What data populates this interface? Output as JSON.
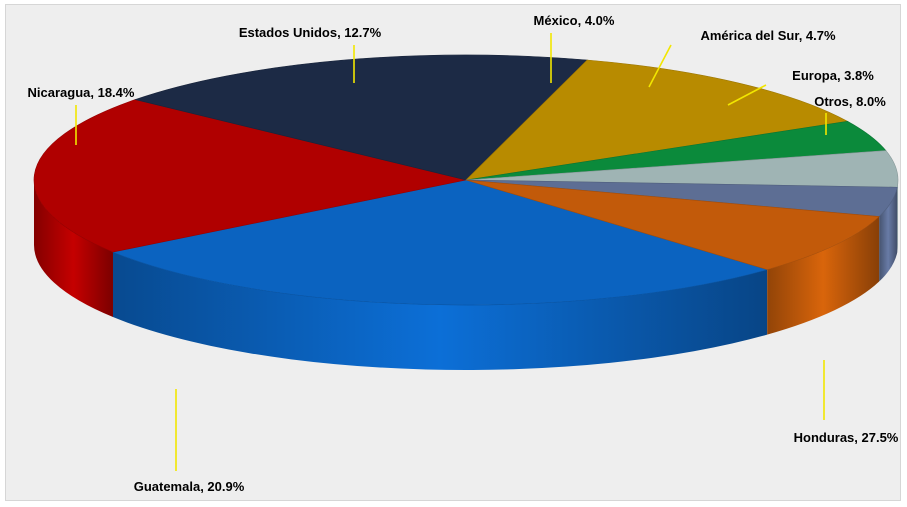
{
  "chart_data": {
    "type": "pie",
    "style": "3d",
    "legend": "none",
    "background": "#eeeeee",
    "slices": [
      {
        "label": "Honduras",
        "value": 27.5,
        "display": "Honduras, 27.5%",
        "color": "#0b63c0"
      },
      {
        "label": "Guatemala",
        "value": 20.9,
        "display": "Guatemala, 20.9%",
        "color": "#b00000"
      },
      {
        "label": "Nicaragua",
        "value": 18.4,
        "display": "Nicaragua, 18.4%",
        "color": "#1c2a45"
      },
      {
        "label": "Estados Unidos",
        "value": 12.7,
        "display": "Estados Unidos, 12.7%",
        "color": "#b88b00"
      },
      {
        "label": "México",
        "value": 4.0,
        "display": "México, 4.0%",
        "color": "#0b8a3b"
      },
      {
        "label": "América del Sur",
        "value": 4.7,
        "display": "América del Sur, 4.7%",
        "color": "#9fb4b4"
      },
      {
        "label": "Europa",
        "value": 3.8,
        "display": "Europa, 3.8%",
        "color": "#5d6e94"
      },
      {
        "label": "Otros",
        "value": 8.0,
        "display": "Otros, 8.0%",
        "color": "#c25a0a"
      }
    ]
  }
}
